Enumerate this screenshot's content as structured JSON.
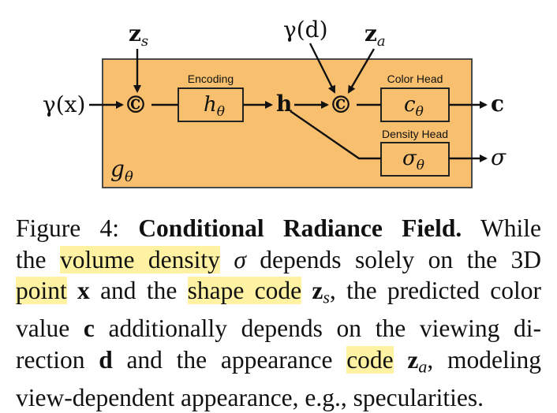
{
  "diagram": {
    "colors": {
      "box_fill": "#f8c06e",
      "box_stroke": "#4a4a4a",
      "inner_fill": "#f8c06e",
      "arrow": "#111111",
      "highlight": "#fff3a3"
    },
    "inputs": {
      "gamma_x": "γ(x)",
      "z_s": "z",
      "z_s_sub": "s",
      "gamma_d": "γ(d)",
      "z_a": "z",
      "z_a_sub": "a"
    },
    "concat_symbol": "©",
    "encoding_label": "Encoding",
    "encoding_func": "h",
    "encoding_func_sub": "θ",
    "hidden": "h",
    "color_head_label": "Color Head",
    "color_func": "c",
    "color_func_sub": "θ",
    "density_head_label": "Density Head",
    "density_func": "σ",
    "density_func_sub": "θ",
    "output_color": "c",
    "output_density": "σ",
    "network_label": "g",
    "network_label_sub": "θ"
  },
  "caption": {
    "lines": [
      [
        "Figure 4: ",
        "Conditional Radiance Field.",
        " While"
      ],
      [
        "the ",
        "volume density",
        " ",
        "σ",
        " depends solely on the 3D"
      ],
      [
        "point",
        " ",
        "x",
        " and the ",
        "shape code",
        " ",
        "z",
        "s",
        ", the predicted color"
      ],
      [
        "value ",
        "c",
        " additionally depends on the viewing di-"
      ],
      [
        "rection ",
        "d",
        " and the appearance ",
        "code",
        " ",
        "z",
        "a",
        ", modeling"
      ],
      [
        "view-dependent appearance, e.g., specularities."
      ]
    ]
  }
}
